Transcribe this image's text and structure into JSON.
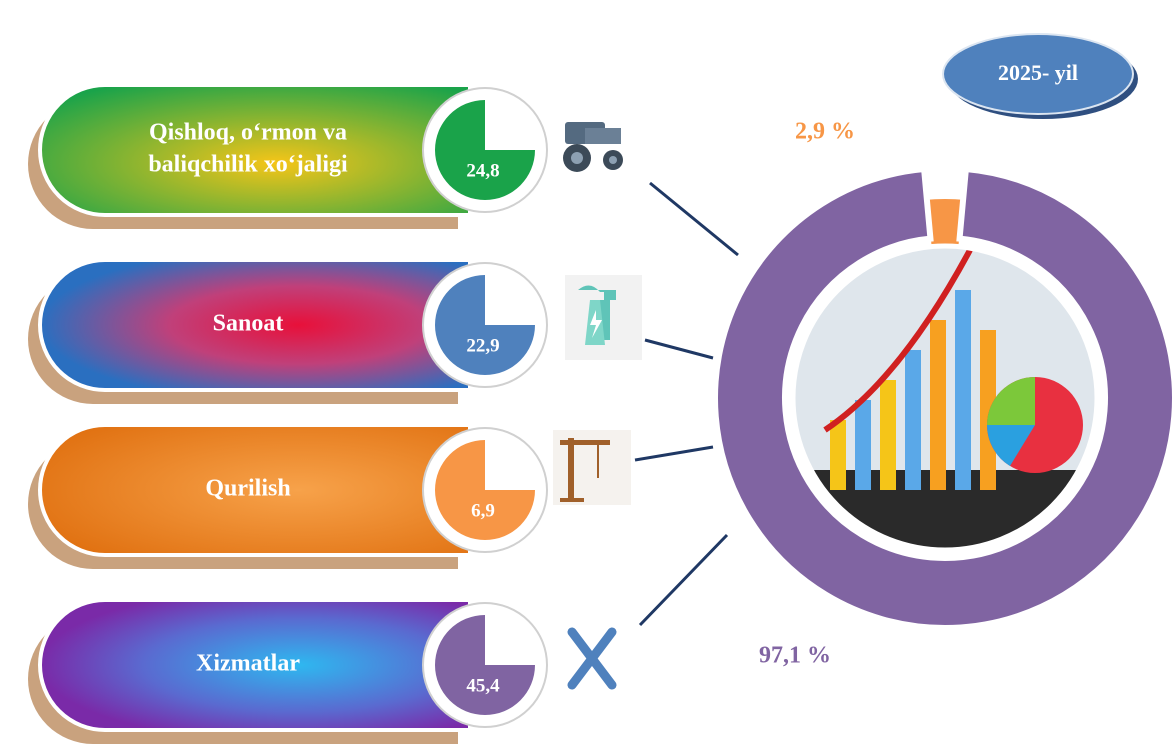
{
  "badge": "2025- yil",
  "sectors": {
    "categories": [
      [
        "Qishloq, o‘rmon va",
        "baliqchilik xo‘jaligi"
      ],
      [
        "Sanoat"
      ],
      [
        "Qurilish"
      ],
      [
        "Xizmatlar"
      ]
    ],
    "values": [
      24.8,
      22.9,
      6.9,
      45.4
    ],
    "value_labels": [
      "24,8",
      "22,9",
      "6,9",
      "45,4"
    ],
    "colors": [
      "#1aa34a",
      "#4f81bd",
      "#f79646",
      "#8064a2"
    ]
  },
  "chart_data": {
    "type": "pie",
    "values": [
      2.9,
      97.1
    ],
    "value_labels": [
      "2,9 %",
      "97,1 %"
    ],
    "colors": [
      "#f79646",
      "#8064a2"
    ]
  }
}
